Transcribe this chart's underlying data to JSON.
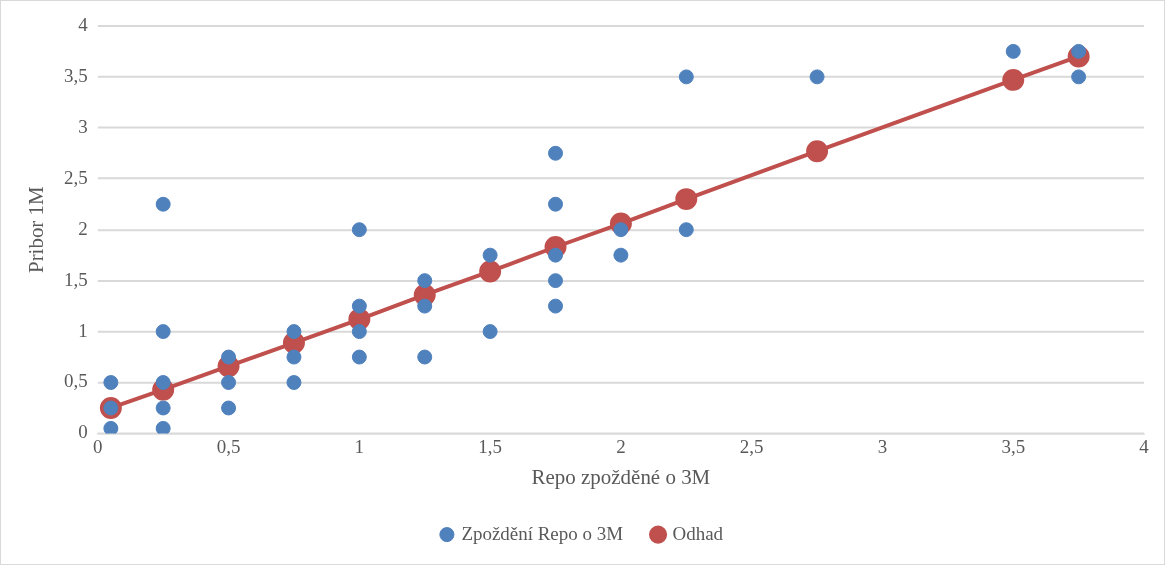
{
  "chart_data": {
    "type": "scatter",
    "xlabel": "Repo zpožděné o 3M",
    "ylabel": "Pribor 1M",
    "xlim": [
      0,
      4
    ],
    "xticks": [
      0,
      {
        "value": 0.5,
        "label": "0,5"
      },
      1,
      {
        "value": 1.5,
        "label": "1,5"
      },
      2,
      {
        "value": 2.5,
        "label": "2,5"
      },
      3,
      {
        "value": 3.5,
        "label": "3,5"
      },
      4
    ],
    "ylim": [
      0,
      4
    ],
    "yticks": [
      0,
      {
        "value": 0.5,
        "label": "0,5"
      },
      1,
      {
        "value": 1.5,
        "label": "1,5"
      },
      2,
      {
        "value": 2.5,
        "label": "2,5"
      },
      3,
      {
        "value": 3.5,
        "label": "3,5"
      },
      4
    ],
    "grid": "y",
    "legend": "bottom",
    "marker": "circle",
    "series": [
      {
        "name": "Zpoždění Repo o 3M",
        "color": "#4f81bd",
        "x": [
          0.05,
          0.05,
          0.05,
          0.25,
          0.25,
          0.25,
          0.25,
          0.25,
          0.5,
          0.5,
          0.5,
          0.75,
          0.75,
          0.75,
          1,
          1,
          1,
          1,
          1.25,
          1.25,
          1.25,
          1.5,
          1.5,
          1.75,
          1.75,
          1.75,
          1.75,
          1.75,
          2,
          2,
          2.25,
          2.25,
          2.75,
          3.5,
          3.75,
          3.75
        ],
        "values": [
          0.5,
          0.25,
          0.05,
          2.25,
          1,
          0.5,
          0.25,
          0.05,
          0.75,
          0.5,
          0.25,
          1,
          0.75,
          0.5,
          2,
          1.25,
          1,
          0.75,
          1.5,
          1.25,
          0.75,
          1.75,
          1,
          2.75,
          2.25,
          1.75,
          1.5,
          1.25,
          2,
          1.75,
          3.5,
          2,
          3.5,
          3.75,
          3.75,
          3.5
        ]
      },
      {
        "name": "Odhad",
        "color": "#c0504d",
        "type": "line",
        "line_style": "solid",
        "x": [
          0.05,
          0.25,
          0.5,
          0.75,
          1,
          1.25,
          1.5,
          1.75,
          2,
          2.25,
          2.75,
          3.5,
          3.75
        ],
        "values": [
          0.25,
          0.43,
          0.66,
          0.89,
          1.12,
          1.36,
          1.59,
          1.83,
          2.06,
          2.3,
          2.77,
          3.47,
          3.7
        ]
      }
    ]
  }
}
